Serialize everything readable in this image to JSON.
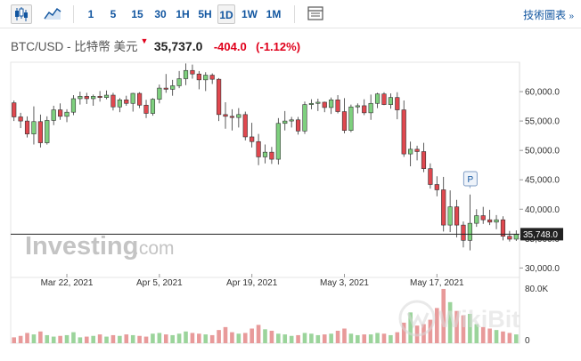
{
  "toolbar": {
    "intervals": [
      "1",
      "5",
      "15",
      "30",
      "1H",
      "5H",
      "1D",
      "1W",
      "1M"
    ],
    "active_interval": "1D",
    "chart_style_icon": "candlestick-icon",
    "area_icon": "area-chart-icon",
    "settings_icon": "calendar-grid-icon",
    "tech_chart_link": "技術圖表",
    "tech_chart_chevron": "»"
  },
  "header": {
    "symbol": "BTC/USD - 比特幣 美元",
    "arrow": "▼",
    "price": "35,737.0",
    "change": "-404.0",
    "change_pct": "(-1.12%)"
  },
  "watermark": {
    "brand": "Investing",
    "suffix": ".com",
    "marker": "P",
    "wikibit": "WikiBit"
  },
  "colors": {
    "up": "#7ed07e",
    "down": "#e0484f",
    "accent": "#1256a0",
    "vol_up": "#9bd49b",
    "vol_down": "#e89a9a"
  },
  "chart_data": {
    "type": "candlestick",
    "current_price_label": "35,748.0",
    "current_price": 35748,
    "ylim": [
      29000,
      65000
    ],
    "y_ticks": [
      30000,
      35000,
      40000,
      45000,
      50000,
      55000,
      60000
    ],
    "y_tick_labels": [
      "30,000.0",
      "35,000.0",
      "40,000.0",
      "45,000.0",
      "50,000.0",
      "55,000.0",
      "60,000.0"
    ],
    "x_ticks": [
      {
        "index": 8,
        "label": "Mar 22, 2021"
      },
      {
        "index": 22,
        "label": "Apr 5, 2021"
      },
      {
        "index": 36,
        "label": "Apr 19, 2021"
      },
      {
        "index": 50,
        "label": "May 3, 2021"
      },
      {
        "index": 64,
        "label": "May 17, 2021"
      }
    ],
    "volume_ylim": [
      0,
      80
    ],
    "volume_tick_labels": [
      "80.0K",
      "0"
    ],
    "candles": [
      [
        58100,
        58500,
        55000,
        55700
      ],
      [
        55700,
        56400,
        53800,
        55000
      ],
      [
        55000,
        55800,
        52200,
        52800
      ],
      [
        52800,
        57500,
        51000,
        54900
      ],
      [
        54900,
        56100,
        50500,
        51300
      ],
      [
        51300,
        55800,
        51000,
        55100
      ],
      [
        55100,
        57600,
        54300,
        56900
      ],
      [
        56900,
        58000,
        55200,
        55800
      ],
      [
        55800,
        57000,
        54800,
        56500
      ],
      [
        56500,
        59400,
        56000,
        58800
      ],
      [
        58800,
        60000,
        57800,
        59200
      ],
      [
        59200,
        59800,
        57900,
        58800
      ],
      [
        58800,
        59500,
        57600,
        59200
      ],
      [
        59200,
        60100,
        58300,
        59000
      ],
      [
        59000,
        60200,
        58700,
        59400
      ],
      [
        59400,
        59800,
        56800,
        57400
      ],
      [
        57400,
        58900,
        56500,
        58600
      ],
      [
        58600,
        59300,
        57600,
        58000
      ],
      [
        58000,
        59800,
        56600,
        59700
      ],
      [
        59700,
        59900,
        57200,
        57700
      ],
      [
        57700,
        58600,
        55500,
        56300
      ],
      [
        56300,
        58900,
        55900,
        58700
      ],
      [
        58700,
        61200,
        58000,
        60600
      ],
      [
        60600,
        63000,
        59800,
        60400
      ],
      [
        60400,
        62000,
        59300,
        61000
      ],
      [
        61000,
        63500,
        60600,
        62200
      ],
      [
        62200,
        64800,
        61100,
        63600
      ],
      [
        63600,
        64600,
        62200,
        63000
      ],
      [
        63000,
        63500,
        60400,
        62000
      ],
      [
        62000,
        63300,
        60100,
        62800
      ],
      [
        62800,
        63100,
        61300,
        62100
      ],
      [
        62100,
        62300,
        55000,
        56100
      ],
      [
        56100,
        58200,
        53700,
        55800
      ],
      [
        55800,
        57000,
        53400,
        55600
      ],
      [
        55600,
        57200,
        53900,
        56100
      ],
      [
        56100,
        56600,
        51700,
        52300
      ],
      [
        52300,
        54700,
        50500,
        51500
      ],
      [
        51500,
        52800,
        47500,
        48900
      ],
      [
        48900,
        51000,
        47800,
        49700
      ],
      [
        49700,
        50600,
        47700,
        48500
      ],
      [
        48500,
        55500,
        47600,
        54600
      ],
      [
        54600,
        56700,
        53400,
        55000
      ],
      [
        55000,
        55700,
        53900,
        55200
      ],
      [
        55200,
        55700,
        52700,
        53300
      ],
      [
        53300,
        58300,
        52800,
        57800
      ],
      [
        57800,
        58700,
        57000,
        58000
      ],
      [
        58000,
        58800,
        56700,
        58200
      ],
      [
        58200,
        58300,
        56500,
        57300
      ],
      [
        57300,
        59000,
        56200,
        58600
      ],
      [
        58600,
        59400,
        56300,
        56600
      ],
      [
        56600,
        58900,
        52900,
        53400
      ],
      [
        53400,
        57800,
        53100,
        57400
      ],
      [
        57400,
        58000,
        56300,
        57600
      ],
      [
        57600,
        58700,
        56000,
        56400
      ],
      [
        56400,
        59500,
        55200,
        58000
      ],
      [
        58000,
        59800,
        57200,
        59600
      ],
      [
        59600,
        59900,
        57700,
        57800
      ],
      [
        57800,
        59700,
        57100,
        59000
      ],
      [
        59000,
        59900,
        55300,
        56900
      ],
      [
        56900,
        58500,
        48900,
        49400
      ],
      [
        49400,
        51500,
        47300,
        50200
      ],
      [
        50200,
        50800,
        48300,
        49800
      ],
      [
        49800,
        51300,
        46300,
        46900
      ],
      [
        46900,
        47800,
        43500,
        44200
      ],
      [
        44200,
        45600,
        42200,
        43300
      ],
      [
        43300,
        45500,
        36200,
        37300
      ],
      [
        37300,
        43200,
        36100,
        40400
      ],
      [
        40400,
        41600,
        35200,
        37300
      ],
      [
        37300,
        37900,
        33500,
        34700
      ],
      [
        34700,
        42500,
        33000,
        37600
      ],
      [
        37600,
        40000,
        37000,
        38900
      ],
      [
        38900,
        40400,
        37500,
        38200
      ],
      [
        38200,
        39900,
        37300,
        37800
      ],
      [
        37800,
        39000,
        36600,
        38200
      ],
      [
        38200,
        38800,
        34700,
        35400
      ],
      [
        35400,
        36300,
        34500,
        34900
      ],
      [
        34900,
        36400,
        34600,
        35700
      ]
    ],
    "volumes": [
      8,
      10,
      14,
      12,
      16,
      11,
      9,
      10,
      11,
      15,
      8,
      9,
      10,
      12,
      9,
      11,
      10,
      12,
      11,
      10,
      9,
      13,
      14,
      12,
      11,
      13,
      16,
      14,
      13,
      12,
      11,
      18,
      22,
      15,
      13,
      14,
      20,
      25,
      19,
      17,
      13,
      12,
      10,
      11,
      14,
      13,
      11,
      12,
      13,
      17,
      20,
      13,
      11,
      12,
      12,
      14,
      13,
      11,
      15,
      28,
      42,
      24,
      26,
      32,
      48,
      74,
      56,
      44,
      38,
      40,
      26,
      22,
      20,
      18,
      16,
      14,
      12
    ]
  }
}
